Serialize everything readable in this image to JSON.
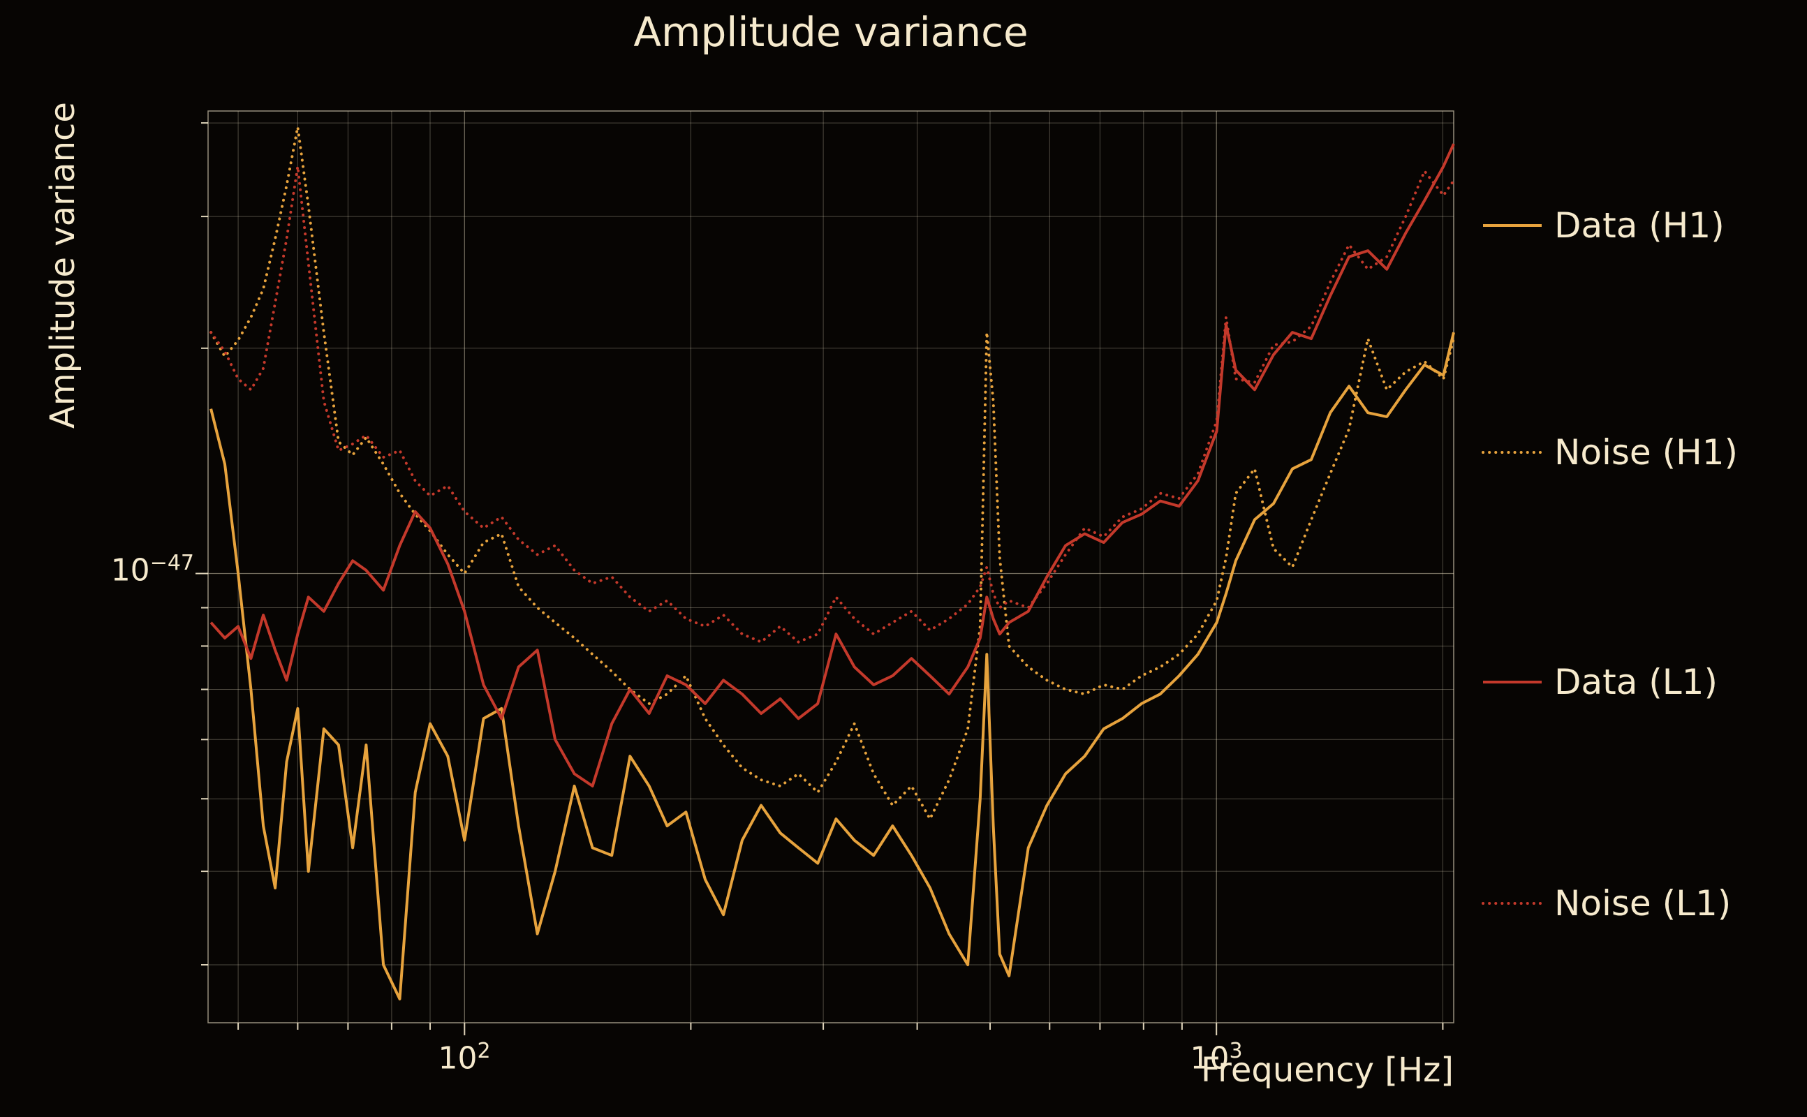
{
  "title": "Amplitude variance",
  "colors": {
    "background": "#070503",
    "text": "#f6eacd",
    "grid": "#f6eacd",
    "gold": "#e7a33d",
    "red": "#c4392b"
  },
  "legend": {
    "entries": [
      {
        "label": "Data (H1)"
      },
      {
        "label": "Noise (H1)"
      },
      {
        "label": "Data (L1)"
      },
      {
        "label": "Noise (L1)"
      }
    ]
  },
  "chart_data": {
    "type": "line",
    "title": "Amplitude variance",
    "xlabel": "Frequency [Hz]",
    "ylabel": "Amplitude variance",
    "x_scale": "log",
    "y_scale": "log",
    "grid": true,
    "legend_position": "right-outside",
    "x_range": [
      45.6,
      2068
    ],
    "y_range": [
      2.5e-48,
      4.15e-47
    ],
    "values_scale": "1e-48",
    "y_range_e48": [
      2.51,
      41.5
    ],
    "x_ticks": [
      {
        "value": 100,
        "base": "10",
        "exp": "2"
      },
      {
        "value": 1000,
        "base": "10",
        "exp": "3"
      }
    ],
    "y_ticks": [
      {
        "value_e48": 10,
        "base": "10",
        "exp": "−47"
      }
    ],
    "x_gridlines": [
      50,
      60,
      70,
      80,
      90,
      100,
      200,
      300,
      400,
      500,
      600,
      700,
      800,
      900,
      1000,
      2000
    ],
    "y_gridlines_e48": [
      3,
      4,
      5,
      6,
      7,
      8,
      9,
      10,
      20,
      30,
      40
    ],
    "x_hz": [
      46,
      48,
      50,
      52,
      54,
      56,
      58,
      60,
      62,
      65,
      68,
      71,
      74,
      78,
      82,
      86,
      90,
      95,
      100,
      106,
      112,
      118,
      125,
      132,
      140,
      148,
      157,
      166,
      176,
      186,
      197,
      209,
      221,
      234,
      248,
      263,
      278,
      295,
      312,
      330,
      350,
      371,
      393,
      416,
      441,
      467,
      485,
      495,
      505,
      515,
      530,
      562,
      595,
      630,
      668,
      708,
      750,
      795,
      842,
      892,
      945,
      1001,
      1030,
      1061,
      1124,
      1191,
      1262,
      1337,
      1417,
      1501,
      1590,
      1685,
      1785,
      1891,
      2004,
      2068
    ],
    "series": [
      {
        "name": "Data (H1)",
        "color": "#e7a33d",
        "style": "solid",
        "values_e48": [
          16.6,
          14.0,
          10.0,
          7.0,
          4.6,
          3.8,
          5.6,
          6.6,
          4.0,
          6.2,
          5.9,
          4.3,
          5.9,
          3.0,
          2.7,
          5.1,
          6.3,
          5.7,
          4.4,
          6.4,
          6.6,
          4.6,
          3.3,
          4.0,
          5.2,
          4.3,
          4.2,
          5.7,
          5.2,
          4.6,
          4.8,
          3.9,
          3.5,
          4.4,
          4.9,
          4.5,
          4.3,
          4.1,
          4.7,
          4.4,
          4.2,
          4.6,
          4.2,
          3.8,
          3.3,
          3.0,
          5.0,
          7.8,
          4.6,
          3.1,
          2.9,
          4.3,
          4.9,
          5.4,
          5.7,
          6.2,
          6.4,
          6.7,
          6.9,
          7.3,
          7.8,
          8.6,
          9.4,
          10.4,
          11.8,
          12.4,
          13.8,
          14.2,
          16.4,
          17.8,
          16.4,
          16.2,
          17.6,
          19.0,
          18.4,
          21.0
        ]
      },
      {
        "name": "Noise (H1)",
        "color": "#e7a33d",
        "style": "dotted",
        "values_e48": [
          21.0,
          19.5,
          20.5,
          22.0,
          24.0,
          28.0,
          33.0,
          39.5,
          31.0,
          21.0,
          15.0,
          14.4,
          15.2,
          14.0,
          12.8,
          12.0,
          11.4,
          10.6,
          10.0,
          11.0,
          11.3,
          9.6,
          9.0,
          8.6,
          8.2,
          7.8,
          7.4,
          7.0,
          6.7,
          6.9,
          7.3,
          6.4,
          5.9,
          5.5,
          5.3,
          5.2,
          5.4,
          5.1,
          5.6,
          6.3,
          5.4,
          4.9,
          5.2,
          4.7,
          5.3,
          6.2,
          8.5,
          21.0,
          17.0,
          10.5,
          8.0,
          7.5,
          7.2,
          7.0,
          6.9,
          7.1,
          7.0,
          7.3,
          7.5,
          7.8,
          8.3,
          9.2,
          10.5,
          12.8,
          13.8,
          10.8,
          10.2,
          11.8,
          13.6,
          15.6,
          20.6,
          17.6,
          18.6,
          19.2,
          18.2,
          20.6
        ]
      },
      {
        "name": "Data (L1)",
        "color": "#c4392b",
        "style": "solid",
        "values_e48": [
          8.6,
          8.2,
          8.5,
          7.7,
          8.8,
          7.9,
          7.2,
          8.3,
          9.3,
          8.9,
          9.7,
          10.4,
          10.1,
          9.5,
          10.9,
          12.1,
          11.5,
          10.3,
          8.9,
          7.1,
          6.4,
          7.5,
          7.9,
          6.0,
          5.4,
          5.2,
          6.3,
          7.0,
          6.5,
          7.3,
          7.1,
          6.7,
          7.2,
          6.9,
          6.5,
          6.8,
          6.4,
          6.7,
          8.3,
          7.5,
          7.1,
          7.3,
          7.7,
          7.3,
          6.9,
          7.5,
          8.2,
          9.3,
          8.7,
          8.3,
          8.6,
          8.9,
          9.9,
          10.9,
          11.3,
          11.0,
          11.7,
          12.0,
          12.5,
          12.3,
          13.3,
          15.5,
          21.5,
          18.7,
          17.6,
          19.6,
          21.0,
          20.6,
          23.5,
          26.5,
          27.0,
          25.5,
          28.5,
          31.5,
          35.0,
          37.5
        ]
      },
      {
        "name": "Noise (L1)",
        "color": "#c4392b",
        "style": "dotted",
        "values_e48": [
          21.0,
          19.8,
          18.2,
          17.6,
          18.8,
          23.0,
          28.0,
          35.0,
          26.0,
          17.0,
          14.6,
          14.9,
          15.3,
          14.3,
          14.6,
          13.3,
          12.7,
          13.1,
          12.1,
          11.5,
          11.9,
          11.1,
          10.6,
          10.9,
          10.1,
          9.7,
          9.9,
          9.3,
          8.9,
          9.2,
          8.7,
          8.5,
          8.8,
          8.3,
          8.1,
          8.5,
          8.1,
          8.3,
          9.3,
          8.7,
          8.3,
          8.6,
          8.9,
          8.4,
          8.7,
          9.1,
          9.6,
          10.2,
          9.4,
          9.0,
          9.2,
          9.0,
          9.7,
          10.6,
          11.5,
          11.2,
          11.9,
          12.2,
          12.8,
          12.6,
          13.6,
          16.0,
          22.0,
          18.2,
          18.0,
          20.2,
          20.4,
          21.4,
          24.5,
          27.5,
          25.5,
          26.5,
          30.0,
          34.5,
          32.0,
          33.5
        ]
      }
    ]
  }
}
